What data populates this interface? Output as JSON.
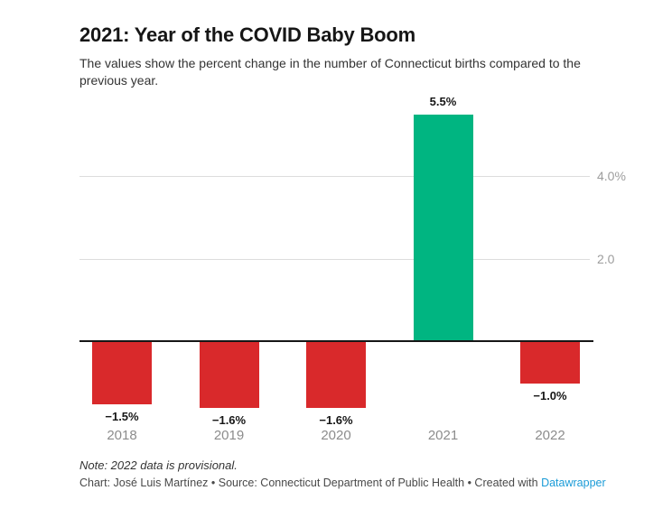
{
  "header": {
    "title": "2021: Year of the COVID Baby Boom",
    "subtitle": "The values show the percent change in the number of Connecticut births compared to the previous year."
  },
  "chart_data": {
    "type": "bar",
    "title": "2021: Year of the COVID Baby Boom",
    "xlabel": "",
    "ylabel": "",
    "categories": [
      "2018",
      "2019",
      "2020",
      "2021",
      "2022"
    ],
    "values": [
      -1.5,
      -1.6,
      -1.6,
      5.5,
      -1.0
    ],
    "value_labels": [
      "−1.5%",
      "−1.6%",
      "−1.6%",
      "5.5%",
      "−1.0%"
    ],
    "bar_colors": [
      "#d9292b",
      "#d9292b",
      "#d9292b",
      "#00b581",
      "#d9292b"
    ],
    "y_ticks": [
      {
        "value": 4.0,
        "label": "4.0%"
      },
      {
        "value": 2.0,
        "label": "2.0"
      }
    ],
    "ylim": [
      -1.8,
      5.9
    ],
    "baseline": 0,
    "grid": "horizontal",
    "legend": "none",
    "colors": {
      "positive": "#00b581",
      "negative": "#d9292b",
      "gridline": "#dddddd",
      "axis_line": "#161616",
      "tick_text": "#9d9d9d",
      "category_text": "#8c8c8c",
      "value_text": "#161616"
    }
  },
  "footer": {
    "note": "Note: 2022 data is provisional.",
    "credit_prefix": "Chart: José Luis Martínez • Source: Connecticut Department of Public Health • Created with ",
    "credit_link": "Datawrapper",
    "credit_link_color": "#1a9bd7"
  }
}
